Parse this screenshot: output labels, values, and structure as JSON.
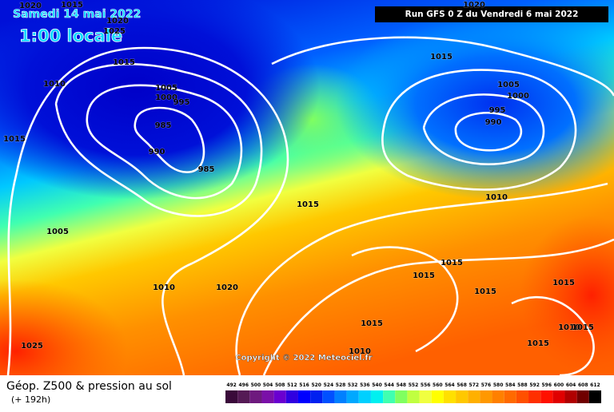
{
  "header": {
    "date": "Samedi 14 mai 2022",
    "time": "1:00 locale",
    "run": "Run GFS 0 Z du Vendredi 6 mai 2022"
  },
  "copyright": "Copyright © 2022 Meteociel.fr",
  "footer": {
    "title": "Géop. Z500 & pression au sol",
    "lead": "(+ 192h)"
  },
  "legend": {
    "values": [
      492,
      496,
      500,
      504,
      508,
      512,
      516,
      520,
      524,
      528,
      532,
      536,
      540,
      544,
      548,
      552,
      556,
      560,
      564,
      568,
      572,
      576,
      580,
      584,
      588,
      592,
      596,
      600,
      604,
      608,
      612
    ],
    "colors": [
      "#3a0a3a",
      "#551a55",
      "#6e1a7e",
      "#7a10a8",
      "#6a00d0",
      "#3000e0",
      "#0000ff",
      "#0020f0",
      "#0050ff",
      "#0080ff",
      "#00a8ff",
      "#00d0ff",
      "#00f0f0",
      "#40ffb0",
      "#80ff60",
      "#c0ff40",
      "#f0ff40",
      "#ffff00",
      "#ffe000",
      "#ffc800",
      "#ffb000",
      "#ff9800",
      "#ff8000",
      "#ff6a00",
      "#ff5000",
      "#ff3000",
      "#ff1000",
      "#e00000",
      "#b00000",
      "#700000",
      "#000000"
    ]
  },
  "isobar_labels": [
    1020,
    1015,
    1020,
    1025,
    1015,
    1010,
    1005,
    1000,
    995,
    985,
    990,
    985,
    1015,
    1005,
    1010,
    1020,
    1025,
    1015,
    1015,
    1020,
    1005,
    1000,
    995,
    990,
    1010,
    1015,
    1015,
    1015,
    1015,
    1010,
    1015,
    1015,
    1015,
    1010
  ]
}
